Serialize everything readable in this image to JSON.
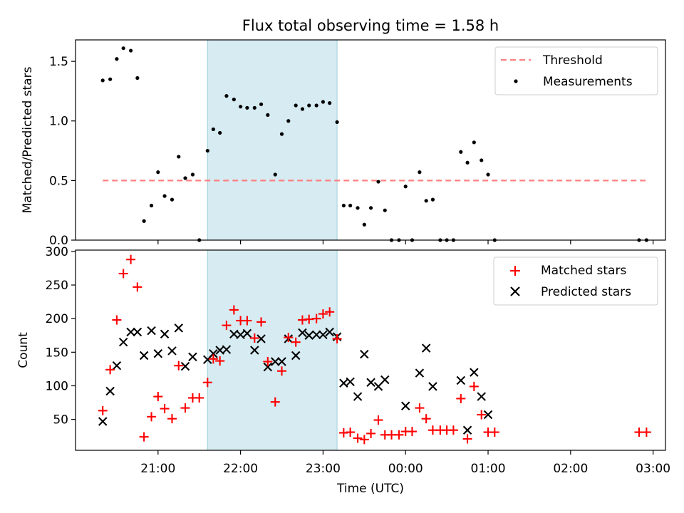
{
  "title": "Flux total observing time = 1.58 h",
  "chart_data": [
    {
      "type": "scatter",
      "ylabel": "Matched/Predicted stars",
      "ylim": [
        0,
        1.68
      ],
      "xlim": [
        20.0,
        27.15
      ],
      "yticks": [
        0.0,
        0.5,
        1.0,
        1.5
      ],
      "ytick_labels": [
        "0.0",
        "0.5",
        "1.0",
        "1.5"
      ],
      "legend_position": "upper-right",
      "highlight_span": [
        21.6,
        23.17
      ],
      "threshold": {
        "name": "Threshold",
        "y": 0.5,
        "x_range": [
          20.33,
          26.93
        ],
        "color": "#ff8080"
      },
      "series": [
        {
          "name": "Measurements",
          "color": "#000000",
          "points": [
            [
              20.33,
              1.34
            ],
            [
              20.42,
              1.35
            ],
            [
              20.5,
              1.52
            ],
            [
              20.58,
              1.61
            ],
            [
              20.67,
              1.59
            ],
            [
              20.75,
              1.36
            ],
            [
              20.83,
              0.16
            ],
            [
              20.92,
              0.29
            ],
            [
              21.0,
              0.57
            ],
            [
              21.08,
              0.37
            ],
            [
              21.17,
              0.34
            ],
            [
              21.25,
              0.7
            ],
            [
              21.33,
              0.52
            ],
            [
              21.42,
              0.55
            ],
            [
              21.5,
              0.0
            ],
            [
              21.6,
              0.75
            ],
            [
              21.67,
              0.93
            ],
            [
              21.75,
              0.9
            ],
            [
              21.83,
              1.21
            ],
            [
              21.92,
              1.18
            ],
            [
              22.0,
              1.12
            ],
            [
              22.08,
              1.11
            ],
            [
              22.17,
              1.11
            ],
            [
              22.25,
              1.14
            ],
            [
              22.33,
              1.05
            ],
            [
              22.42,
              0.55
            ],
            [
              22.5,
              0.89
            ],
            [
              22.58,
              1.0
            ],
            [
              22.67,
              1.13
            ],
            [
              22.75,
              1.1
            ],
            [
              22.83,
              1.13
            ],
            [
              22.92,
              1.13
            ],
            [
              23.0,
              1.16
            ],
            [
              23.08,
              1.15
            ],
            [
              23.17,
              0.99
            ],
            [
              23.25,
              0.29
            ],
            [
              23.33,
              0.29
            ],
            [
              23.42,
              0.27
            ],
            [
              23.5,
              0.13
            ],
            [
              23.58,
              0.27
            ],
            [
              23.67,
              0.49
            ],
            [
              23.75,
              0.25
            ],
            [
              23.83,
              0.0
            ],
            [
              23.92,
              0.0
            ],
            [
              24.0,
              0.45
            ],
            [
              24.08,
              0.0
            ],
            [
              24.17,
              0.57
            ],
            [
              24.25,
              0.33
            ],
            [
              24.33,
              0.34
            ],
            [
              24.42,
              0.0
            ],
            [
              24.5,
              0.0
            ],
            [
              24.58,
              0.0
            ],
            [
              24.67,
              0.74
            ],
            [
              24.75,
              0.65
            ],
            [
              24.83,
              0.82
            ],
            [
              24.92,
              0.67
            ],
            [
              25.0,
              0.55
            ],
            [
              25.08,
              0.0
            ],
            [
              26.83,
              0.0
            ],
            [
              26.92,
              0.0
            ]
          ]
        }
      ]
    },
    {
      "type": "scatter",
      "xlabel": "Time (UTC)",
      "ylabel": "Count",
      "ylim": [
        4,
        302
      ],
      "xlim": [
        20.0,
        27.15
      ],
      "yticks": [
        50,
        100,
        150,
        200,
        250,
        300
      ],
      "ytick_labels": [
        "50",
        "100",
        "150",
        "200",
        "250",
        "300"
      ],
      "xticks": [
        21,
        22,
        23,
        24,
        25,
        26,
        27
      ],
      "xtick_labels": [
        "21:00",
        "22:00",
        "23:00",
        "00:00",
        "01:00",
        "02:00",
        "03:00"
      ],
      "legend_position": "upper-right",
      "highlight_span": [
        21.6,
        23.17
      ],
      "series": [
        {
          "name": "Matched stars",
          "marker": "plus",
          "color": "#ff0000",
          "points": [
            [
              20.33,
              63
            ],
            [
              20.42,
              124
            ],
            [
              20.5,
              198
            ],
            [
              20.58,
              267
            ],
            [
              20.67,
              288
            ],
            [
              20.75,
              247
            ],
            [
              20.83,
              24
            ],
            [
              20.92,
              54
            ],
            [
              21.0,
              84
            ],
            [
              21.08,
              66
            ],
            [
              21.17,
              51
            ],
            [
              21.25,
              130
            ],
            [
              21.33,
              67
            ],
            [
              21.42,
              82
            ],
            [
              21.5,
              82
            ],
            [
              21.6,
              105
            ],
            [
              21.67,
              140
            ],
            [
              21.75,
              137
            ],
            [
              21.83,
              190
            ],
            [
              21.92,
              213
            ],
            [
              22.0,
              197
            ],
            [
              22.08,
              197
            ],
            [
              22.17,
              171
            ],
            [
              22.25,
              195
            ],
            [
              22.33,
              136
            ],
            [
              22.42,
              76
            ],
            [
              22.5,
              122
            ],
            [
              22.58,
              172
            ],
            [
              22.67,
              165
            ],
            [
              22.75,
              198
            ],
            [
              22.83,
              199
            ],
            [
              22.92,
              200
            ],
            [
              23.0,
              207
            ],
            [
              23.08,
              210
            ],
            [
              23.17,
              170
            ],
            [
              23.25,
              30
            ],
            [
              23.33,
              31
            ],
            [
              23.42,
              22
            ],
            [
              23.5,
              20
            ],
            [
              23.58,
              29
            ],
            [
              23.67,
              49
            ],
            [
              23.75,
              27
            ],
            [
              23.83,
              27
            ],
            [
              23.92,
              27
            ],
            [
              24.0,
              32
            ],
            [
              24.08,
              32
            ],
            [
              24.17,
              67
            ],
            [
              24.25,
              51
            ],
            [
              24.33,
              34
            ],
            [
              24.42,
              34
            ],
            [
              24.5,
              34
            ],
            [
              24.58,
              34
            ],
            [
              24.67,
              81
            ],
            [
              24.75,
              21
            ],
            [
              24.83,
              99
            ],
            [
              24.92,
              57
            ],
            [
              25.0,
              31
            ],
            [
              25.08,
              31
            ],
            [
              26.83,
              31
            ],
            [
              26.92,
              31
            ]
          ]
        },
        {
          "name": "Predicted stars",
          "marker": "x",
          "color": "#000000",
          "points": [
            [
              20.33,
              47
            ],
            [
              20.42,
              92
            ],
            [
              20.5,
              130
            ],
            [
              20.58,
              165
            ],
            [
              20.67,
              180
            ],
            [
              20.75,
              180
            ],
            [
              20.83,
              145
            ],
            [
              20.92,
              182
            ],
            [
              21.0,
              148
            ],
            [
              21.08,
              177
            ],
            [
              21.17,
              152
            ],
            [
              21.25,
              186
            ],
            [
              21.33,
              129
            ],
            [
              21.42,
              143
            ],
            [
              21.6,
              139
            ],
            [
              21.67,
              148
            ],
            [
              21.75,
              153
            ],
            [
              21.83,
              154
            ],
            [
              21.92,
              177
            ],
            [
              22.0,
              176
            ],
            [
              22.08,
              178
            ],
            [
              22.17,
              153
            ],
            [
              22.25,
              170
            ],
            [
              22.33,
              128
            ],
            [
              22.42,
              136
            ],
            [
              22.5,
              136
            ],
            [
              22.58,
              170
            ],
            [
              22.67,
              145
            ],
            [
              22.75,
              179
            ],
            [
              22.83,
              175
            ],
            [
              22.92,
              176
            ],
            [
              23.0,
              176
            ],
            [
              23.08,
              180
            ],
            [
              23.17,
              173
            ],
            [
              23.25,
              104
            ],
            [
              23.33,
              106
            ],
            [
              23.42,
              84
            ],
            [
              23.5,
              147
            ],
            [
              23.58,
              105
            ],
            [
              23.67,
              99
            ],
            [
              23.75,
              109
            ],
            [
              24.0,
              70
            ],
            [
              24.17,
              119
            ],
            [
              24.25,
              156
            ],
            [
              24.33,
              99
            ],
            [
              24.67,
              108
            ],
            [
              24.75,
              34
            ],
            [
              24.83,
              120
            ],
            [
              24.92,
              84
            ],
            [
              25.0,
              57
            ]
          ]
        }
      ]
    }
  ]
}
